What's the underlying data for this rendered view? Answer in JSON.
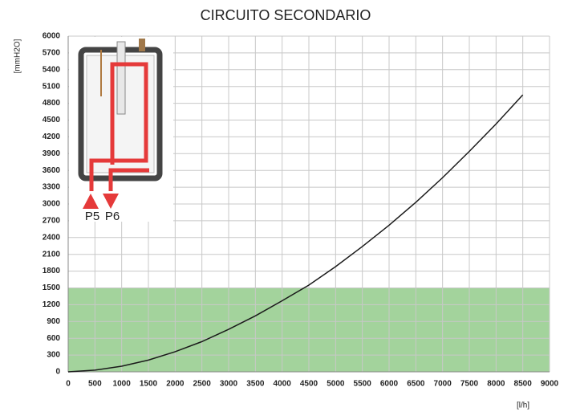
{
  "chart_data": {
    "type": "line",
    "title": "CIRCUITO SECONDARIO",
    "y_label": "[mmH2O]",
    "x_label": "[l/h]",
    "x": [
      0,
      500,
      1000,
      1500,
      2000,
      2500,
      3000,
      3500,
      4000,
      4500,
      5000,
      5500,
      6000,
      6500,
      7000,
      7500,
      8000,
      8500
    ],
    "values": [
      0,
      30,
      100,
      210,
      360,
      540,
      760,
      1000,
      1270,
      1550,
      1880,
      2240,
      2620,
      3030,
      3470,
      3940,
      4430,
      4950
    ],
    "color": "#1a1a1a",
    "band": [
      0,
      1500
    ],
    "band_color": "#a3d39c",
    "xlim": [
      0,
      9000
    ],
    "xticks": [
      0,
      500,
      1000,
      1500,
      2000,
      2500,
      3000,
      3500,
      4000,
      4500,
      5000,
      5500,
      6000,
      6500,
      7000,
      7500,
      8000,
      8500,
      9000
    ],
    "ylim": [
      0,
      6000
    ],
    "yticks": [
      0,
      300,
      600,
      900,
      1200,
      1500,
      1800,
      2100,
      2400,
      2700,
      3000,
      3300,
      3600,
      3900,
      4200,
      4500,
      4800,
      5100,
      5400,
      5700,
      6000
    ],
    "grid": true,
    "annotations": [
      "P5",
      "P6"
    ]
  }
}
